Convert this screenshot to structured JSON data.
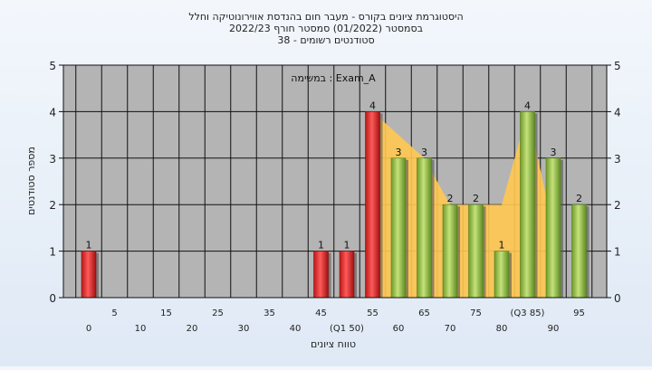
{
  "chart_data": {
    "type": "bar",
    "title": "היסטוגרמת ציונים בקורס - מעבר חום בהנדסת אווירונוטיקה וחלל",
    "subtitle": "בסמסטר  (01/2022)  סמסטר חורף 2022/23",
    "subtitle2": "סטודנטים רשומים - 38",
    "annotation": "במשימה : Exam_A",
    "ylabel": "מספר סטודנטים",
    "xlabel": "טווח ציונים",
    "ylim": [
      0,
      5
    ],
    "yticks": [
      0,
      1,
      2,
      3,
      4,
      5
    ],
    "grid": true,
    "x_tick_labels_row1": [
      "5",
      "15",
      "25",
      "35",
      "45",
      "55",
      "65",
      "75",
      "(Q3 85)",
      "95"
    ],
    "x_tick_labels_row2": [
      "0",
      "10",
      "20",
      "30",
      "40",
      "(Q1 50)",
      "60",
      "70",
      "80",
      "90"
    ],
    "categories": [
      "0",
      "5",
      "10",
      "15",
      "20",
      "25",
      "30",
      "35",
      "40",
      "45",
      "50",
      "55",
      "60",
      "65",
      "70",
      "75",
      "80",
      "85",
      "90",
      "95"
    ],
    "values": [
      1,
      0,
      0,
      0,
      0,
      0,
      0,
      0,
      0,
      1,
      1,
      4,
      3,
      3,
      2,
      2,
      1,
      4,
      3,
      2
    ],
    "data_labels": [
      "1",
      "",
      "",
      "",
      "",
      "",
      "",
      "",
      "",
      "1",
      "1",
      "4",
      "3",
      "3",
      "2",
      "2",
      "1",
      "4",
      "3",
      "2"
    ],
    "bar_colors": [
      "red",
      "none",
      "none",
      "none",
      "none",
      "none",
      "none",
      "none",
      "none",
      "red",
      "red",
      "red",
      "green",
      "green",
      "green",
      "green",
      "green",
      "green",
      "green",
      "green"
    ],
    "area_values": [
      4,
      3.5,
      3,
      2,
      2,
      2,
      4,
      1.5
    ],
    "colors": {
      "red": "#e03030",
      "green": "#9cc34a",
      "area": "#ffc850",
      "plot_bg": "#b4b4b4"
    }
  }
}
